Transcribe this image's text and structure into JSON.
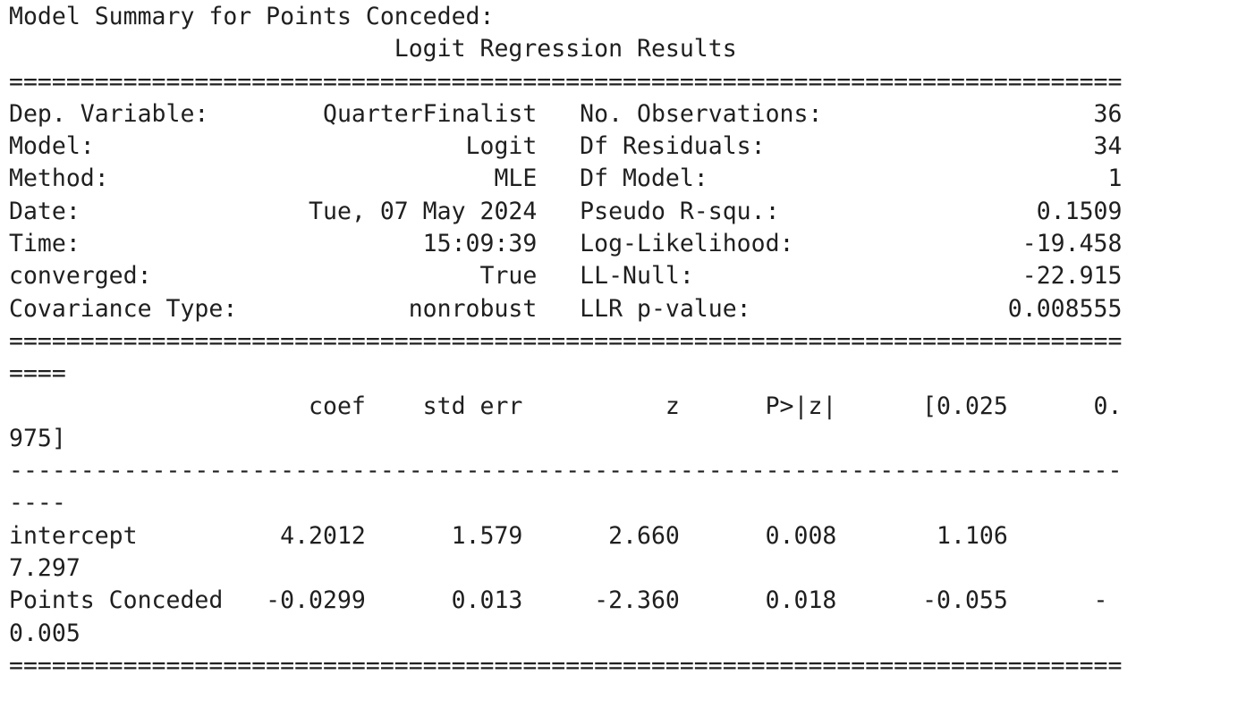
{
  "output": {
    "lines": [
      "Model Summary for Points Conceded:",
      "                           Logit Regression Results                           ",
      "==============================================================================",
      "Dep. Variable:        QuarterFinalist   No. Observations:                   36",
      "Model:                          Logit   Df Residuals:                       34",
      "Method:                           MLE   Df Model:                            1",
      "Date:                Tue, 07 May 2024   Pseudo R-squ.:                  0.1509",
      "Time:                        15:09:39   Log-Likelihood:                -19.458",
      "converged:                       True   LL-Null:                       -22.915",
      "Covariance Type:            nonrobust   LLR p-value:                  0.008555",
      "==============================================================================",
      "====",
      "                     coef    std err          z      P>|z|      [0.025      0.",
      "975]",
      "------------------------------------------------------------------------------",
      "----",
      "intercept          4.2012      1.579      2.660      0.008       1.106       ",
      "7.297",
      "Points Conceded   -0.0299      0.013     -2.360      0.018      -0.055      -",
      "0.005",
      "=============================================================================="
    ]
  }
}
